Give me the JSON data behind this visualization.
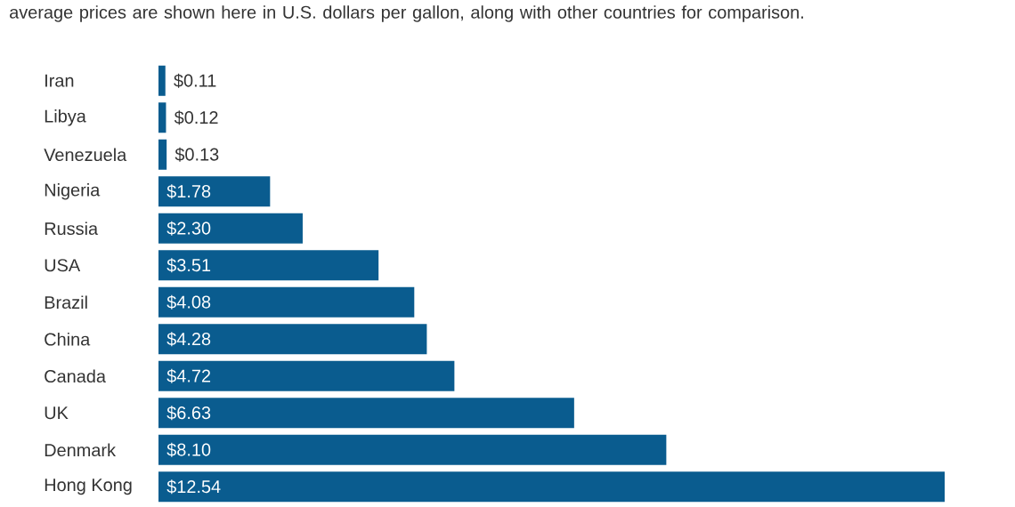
{
  "chart_data": {
    "type": "bar",
    "orientation": "horizontal",
    "subtitle": "average prices are shown here in U.S. dollars per gallon, along with other countries for comparison.",
    "categories": [
      "Iran",
      "Libya",
      "Venezuela",
      "Nigeria",
      "Russia",
      "USA",
      "Brazil",
      "China",
      "Canada",
      "UK",
      "Denmark",
      "Hong Kong"
    ],
    "values": [
      0.11,
      0.12,
      0.13,
      1.78,
      2.3,
      3.51,
      4.08,
      4.28,
      4.72,
      6.63,
      8.1,
      12.54
    ],
    "value_labels": [
      "$0.11",
      "$0.12",
      "$0.13",
      "$1.78",
      "$2.30",
      "$3.51",
      "$4.08",
      "$4.28",
      "$4.72",
      "$6.63",
      "$8.10",
      "$12.54"
    ],
    "color": "#0a5c8f"
  }
}
